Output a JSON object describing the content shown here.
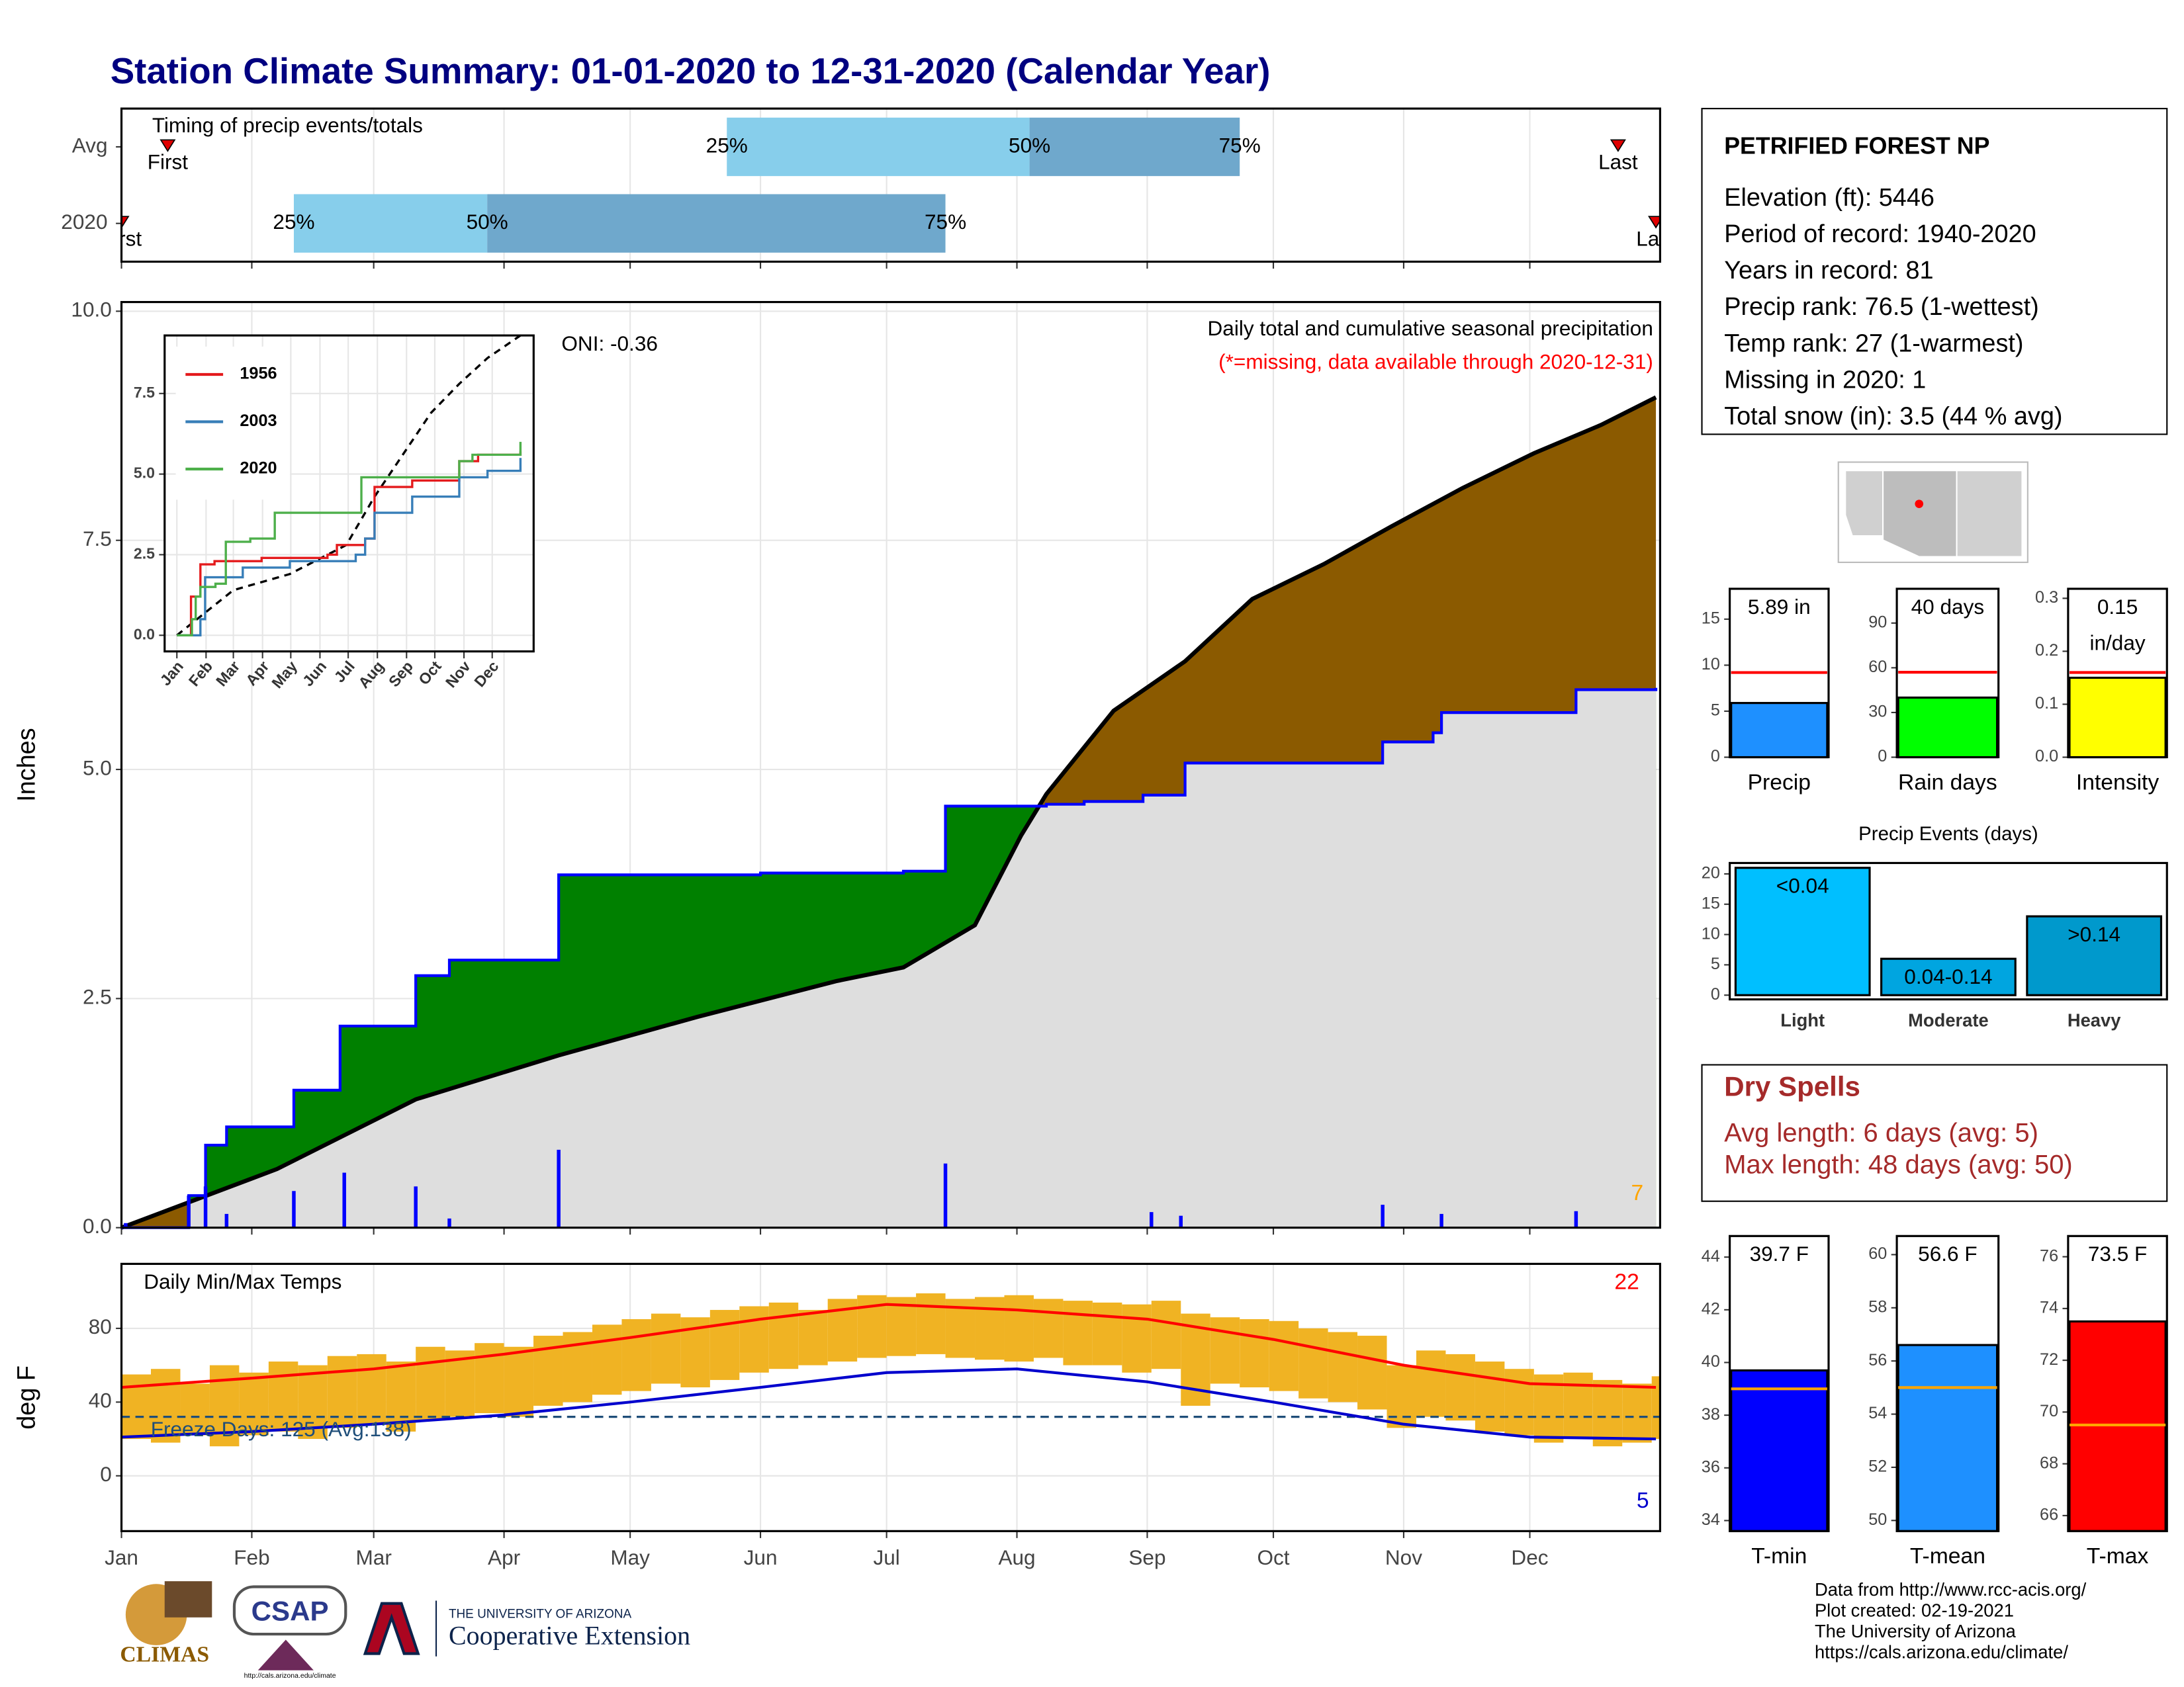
{
  "title": "Station Climate Summary: 01-01-2020 to 12-31-2020 (Calendar Year)",
  "station": {
    "name": "PETRIFIED FOREST NP",
    "lines": [
      "Elevation (ft): 5446",
      "Period of record: 1940-2020",
      "Years in record: 81",
      "Precip rank: 76.5 (1-wettest)",
      "Temp rank: 27 (1-warmest)",
      "Missing in 2020: 1",
      "Total snow (in): 3.5 (44 % avg)"
    ]
  },
  "dry_spells": {
    "title": "Dry Spells",
    "lines": [
      "Avg length: 6 days (avg: 5)",
      "Max length: 48 days (avg: 50)"
    ]
  },
  "footer": [
    "Data from http://www.rcc-acis.org/",
    "Plot created: 02-19-2021",
    "The University of Arizona",
    "https://cals.arizona.edu/climate/"
  ],
  "logos": {
    "climas": "CLIMAS",
    "csap": "CSAP",
    "csap_url": "http://cals.arizona.edu/climate",
    "university": "THE UNIVERSITY OF ARIZONA",
    "extension": "Cooperative Extension"
  },
  "chart_data": [
    {
      "type": "timing",
      "title": "Timing of precip events/totals",
      "xlim": [
        0,
        366
      ],
      "xticks": [
        0,
        31,
        60,
        91,
        121,
        152,
        182,
        213,
        244,
        274,
        305,
        335
      ],
      "rows": [
        {
          "name": "Avg",
          "first": 11,
          "p25": 144,
          "p50": 216,
          "p75": 266,
          "last": 356
        },
        {
          "name": "2020",
          "first": 0,
          "p25": 41,
          "p50": 87,
          "p75": 196,
          "last": 365
        }
      ],
      "marker_labels": [
        "First",
        "Last"
      ],
      "percentile_labels": [
        "25%",
        "50%",
        "75%"
      ],
      "colors": [
        "#87ceeb",
        "#6fa8cc"
      ],
      "marker_color": "#e00000"
    },
    {
      "type": "cumulative",
      "title": "Daily total and cumulative seasonal precipitation",
      "subtitle": "(*=missing, data available through 2020-12-31)",
      "annotation": "ONI: -0.36",
      "corner_value": 7,
      "ylabel": "Inches",
      "xlim": [
        0,
        366
      ],
      "xticks": [
        0,
        31,
        60,
        91,
        121,
        152,
        182,
        213,
        244,
        274,
        305,
        335
      ],
      "ylim": [
        0,
        10.1
      ],
      "yticks": [
        {
          "value": 0,
          "label": "0.0"
        },
        2.5,
        {
          "value": 5,
          "label": "5.0"
        },
        7.5,
        {
          "value": 10,
          "label": "10.0"
        }
      ],
      "grid": true,
      "cumulative": {
        "x": [
          0,
          16,
          20,
          25,
          41,
          52,
          70,
          78,
          104,
          152,
          186,
          196,
          220,
          229,
          243,
          253,
          300,
          312,
          314,
          346,
          365
        ],
        "values": [
          0,
          0.35,
          0.9,
          1.1,
          1.5,
          2.2,
          2.75,
          2.92,
          3.85,
          3.87,
          3.89,
          4.6,
          4.62,
          4.65,
          4.72,
          5.07,
          5.3,
          5.4,
          5.62,
          5.87,
          5.89
        ],
        "color": "#0000ff"
      },
      "average": {
        "x": [
          0,
          37,
          70,
          104,
          137,
          170,
          186,
          203,
          214,
          220,
          236,
          253,
          269,
          286,
          302,
          319,
          336,
          352,
          365
        ],
        "values": [
          0,
          0.64,
          1.4,
          1.88,
          2.3,
          2.69,
          2.84,
          3.3,
          4.28,
          4.73,
          5.64,
          6.18,
          6.86,
          7.24,
          7.65,
          8.07,
          8.45,
          8.76,
          9.06
        ],
        "color": "#000000"
      },
      "daily": {
        "x": [
          1,
          16,
          20,
          25,
          41,
          53,
          70,
          78,
          104,
          196,
          245,
          252,
          300,
          314,
          346
        ],
        "values": [
          0.05,
          0.35,
          0.45,
          0.15,
          0.4,
          0.6,
          0.45,
          0.1,
          0.85,
          0.7,
          0.17,
          0.13,
          0.25,
          0.15,
          0.18
        ],
        "color": "#0000ff"
      },
      "fill_colors": {
        "above": "#008000",
        "below": "#8b5a00",
        "base": "#dedede"
      },
      "subtitle_color": "#ff0000",
      "corner_color": "#ffa500"
    },
    {
      "type": "line",
      "xlim": [
        -13,
        379
      ],
      "ylim": [
        -0.5,
        9.3
      ],
      "grid": true,
      "xticks": [
        {
          "value": 0,
          "label": "Jan"
        },
        {
          "value": 31,
          "label": "Feb"
        },
        {
          "value": 60,
          "label": "Mar"
        },
        {
          "value": 91,
          "label": "Apr"
        },
        {
          "value": 121,
          "label": "May"
        },
        {
          "value": 152,
          "label": "Jun"
        },
        {
          "value": 182,
          "label": "Jul"
        },
        {
          "value": 213,
          "label": "Aug"
        },
        {
          "value": 244,
          "label": "Sep"
        },
        {
          "value": 274,
          "label": "Oct"
        },
        {
          "value": 305,
          "label": "Nov"
        },
        {
          "value": 335,
          "label": "Dec"
        }
      ],
      "yticks": [
        {
          "value": 0,
          "label": "0.0"
        },
        2.5,
        {
          "value": 5,
          "label": "5.0"
        },
        7.5
      ],
      "series": [
        {
          "name": "1956",
          "color": "#e41a1c",
          "x": [
            0,
            15,
            25,
            40,
            55,
            90,
            130,
            160,
            170,
            200,
            210,
            250,
            300,
            320,
            365
          ],
          "values": [
            0,
            1.2,
            2.2,
            2.3,
            2.3,
            2.4,
            2.4,
            2.5,
            2.8,
            3.0,
            4.6,
            4.8,
            5.4,
            5.6,
            5.7
          ]
        },
        {
          "name": "2003",
          "color": "#377eb8",
          "x": [
            0,
            25,
            30,
            70,
            120,
            190,
            200,
            210,
            250,
            300,
            330,
            365
          ],
          "values": [
            0,
            0.5,
            1.8,
            2.1,
            2.3,
            2.5,
            3.0,
            3.8,
            4.3,
            4.9,
            5.1,
            5.5
          ]
        },
        {
          "name": "2020",
          "color": "#4daf4a",
          "x": [
            0,
            16,
            20,
            25,
            41,
            52,
            78,
            104,
            196,
            300,
            314,
            365
          ],
          "values": [
            0,
            0.5,
            1.2,
            1.5,
            1.6,
            2.9,
            3.0,
            3.8,
            4.9,
            5.4,
            5.6,
            6.0
          ]
        }
      ],
      "average": {
        "x": [
          0,
          60,
          120,
          180,
          210,
          240,
          270,
          300,
          330,
          365
        ],
        "values": [
          0,
          1.4,
          1.9,
          2.8,
          4.3,
          5.6,
          6.9,
          7.8,
          8.6,
          9.3
        ],
        "color": "#000000"
      }
    },
    {
      "type": "range",
      "title": "Daily Min/Max Temps",
      "ylabel": "deg F",
      "xlim": [
        0,
        366
      ],
      "ylim": [
        -30,
        115
      ],
      "yticks": [
        0,
        40,
        80
      ],
      "grid": true,
      "xticks": [
        {
          "value": 0,
          "label": "Jan"
        },
        {
          "value": 31,
          "label": "Feb"
        },
        {
          "value": 60,
          "label": "Mar"
        },
        {
          "value": 91,
          "label": "Apr"
        },
        {
          "value": 121,
          "label": "May"
        },
        {
          "value": 152,
          "label": "Jun"
        },
        {
          "value": 182,
          "label": "Jul"
        },
        {
          "value": 213,
          "label": "Aug"
        },
        {
          "value": 244,
          "label": "Sep"
        },
        {
          "value": 274,
          "label": "Oct"
        },
        {
          "value": 305,
          "label": "Nov"
        },
        {
          "value": 335,
          "label": "Dec"
        }
      ],
      "weekly": {
        "x": [
          0,
          7,
          14,
          21,
          28,
          35,
          42,
          49,
          56,
          63,
          70,
          77,
          84,
          91,
          98,
          105,
          112,
          119,
          126,
          133,
          140,
          147,
          154,
          161,
          168,
          175,
          182,
          189,
          196,
          203,
          210,
          217,
          224,
          231,
          238,
          245,
          252,
          259,
          266,
          273,
          280,
          287,
          294,
          301,
          308,
          315,
          322,
          329,
          336,
          343,
          350,
          357,
          364
        ],
        "min": [
          20,
          18,
          22,
          16,
          22,
          24,
          20,
          26,
          28,
          24,
          30,
          32,
          34,
          32,
          38,
          40,
          44,
          46,
          50,
          48,
          52,
          56,
          58,
          60,
          62,
          64,
          65,
          66,
          64,
          63,
          62,
          64,
          60,
          60,
          56,
          58,
          38,
          50,
          48,
          46,
          42,
          40,
          36,
          26,
          32,
          30,
          24,
          22,
          18,
          20,
          16,
          18,
          20
        ],
        "max": [
          55,
          58,
          50,
          60,
          56,
          62,
          60,
          65,
          66,
          62,
          70,
          68,
          72,
          70,
          76,
          78,
          82,
          85,
          88,
          86,
          90,
          92,
          94,
          90,
          96,
          98,
          97,
          99,
          96,
          97,
          98,
          96,
          95,
          94,
          93,
          95,
          88,
          86,
          85,
          84,
          80,
          78,
          76,
          60,
          68,
          66,
          62,
          58,
          55,
          56,
          52,
          50,
          54
        ],
        "color": "#f0b323"
      },
      "normal_max": {
        "x": [
          0,
          31,
          60,
          91,
          121,
          152,
          182,
          213,
          244,
          274,
          305,
          335,
          365
        ],
        "values": [
          48,
          53,
          58,
          66,
          75,
          85,
          93,
          90,
          85,
          74,
          60,
          50,
          48
        ],
        "color": "#ff0000"
      },
      "normal_min": {
        "x": [
          0,
          31,
          60,
          91,
          121,
          152,
          182,
          213,
          244,
          274,
          305,
          335,
          365
        ],
        "values": [
          21,
          24,
          28,
          33,
          40,
          48,
          56,
          58,
          51,
          40,
          28,
          21,
          20
        ],
        "color": "#0000cd"
      },
      "freeze_line": 32,
      "freeze_label": "Freeze Days: 125 (Avg:138)",
      "freeze_color": "#1f4e79",
      "record_high_count": 22,
      "record_low_count": 5
    },
    {
      "type": "bar",
      "categories": [
        "Precip"
      ],
      "values": [
        5.89
      ],
      "value_labels": [
        "5.89 in"
      ],
      "colors": [
        "#1e90ff"
      ],
      "ylim": [
        0,
        18.3
      ],
      "yticks": [
        0,
        5,
        10,
        15
      ],
      "avg": 9.2,
      "avg_color": "#ff0000"
    },
    {
      "type": "bar",
      "categories": [
        "Rain days"
      ],
      "values": [
        40
      ],
      "value_labels": [
        "40 days"
      ],
      "colors": [
        "#00ff00"
      ],
      "ylim": [
        0,
        113
      ],
      "yticks": [
        0,
        30,
        60,
        90
      ],
      "avg": 57,
      "avg_color": "#ff0000"
    },
    {
      "type": "bar",
      "categories": [
        "Intensity"
      ],
      "values": [
        0.15
      ],
      "value_labels": [
        "0.15"
      ],
      "unit": "in/day",
      "colors": [
        "#ffff00"
      ],
      "ylim": [
        0,
        0.318
      ],
      "yticks": [
        {
          "value": 0,
          "label": "0.0"
        },
        0.1,
        0.2,
        0.3
      ],
      "avg": 0.16,
      "avg_color": "#ff0000"
    },
    {
      "type": "bar",
      "title": "Precip Events (days)",
      "categories": [
        "Light",
        "Moderate",
        "Heavy"
      ],
      "values": [
        21,
        6,
        13
      ],
      "value_labels": [
        "<0.04",
        "0.04-0.14",
        ">0.14"
      ],
      "colors": [
        "#00bfff",
        "#00a5e0",
        "#0099cc"
      ],
      "ylim": [
        -0.7,
        21.8
      ],
      "yticks": [
        0,
        5,
        10,
        15,
        20
      ]
    },
    {
      "type": "bar",
      "categories": [
        "T-min"
      ],
      "values": [
        39.7
      ],
      "value_labels": [
        "39.7 F"
      ],
      "colors": [
        "#0000ff"
      ],
      "ylim": [
        33.6,
        44.8
      ],
      "yticks": [
        34,
        36,
        38,
        40,
        42,
        44
      ],
      "avg": 39.0,
      "avg_color": "#ffa500"
    },
    {
      "type": "bar",
      "categories": [
        "T-mean"
      ],
      "values": [
        56.6
      ],
      "value_labels": [
        "56.6 F"
      ],
      "colors": [
        "#1e90ff"
      ],
      "ylim": [
        49.6,
        60.7
      ],
      "yticks": [
        50,
        52,
        54,
        56,
        58,
        60
      ],
      "avg": 55.0,
      "avg_color": "#ffa500"
    },
    {
      "type": "bar",
      "categories": [
        "T-max"
      ],
      "values": [
        73.5
      ],
      "value_labels": [
        "73.5 F"
      ],
      "colors": [
        "#ff0000"
      ],
      "ylim": [
        65.4,
        76.8
      ],
      "yticks": [
        66,
        68,
        70,
        72,
        74,
        76
      ],
      "avg": 69.5,
      "avg_color": "#ffa500"
    }
  ]
}
